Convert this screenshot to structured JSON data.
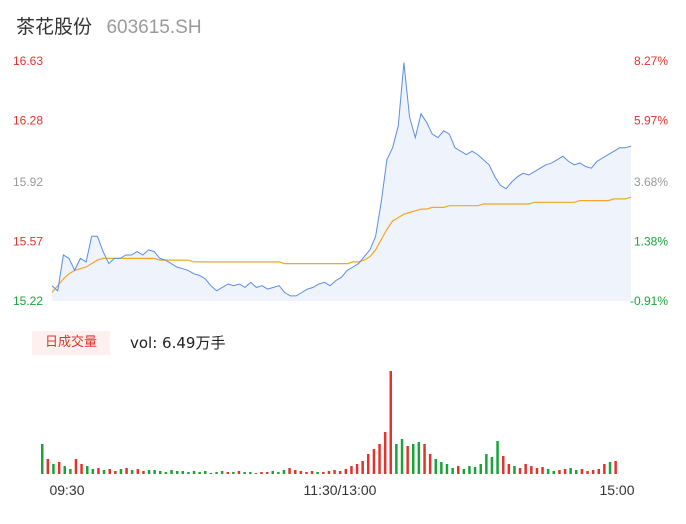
{
  "header": {
    "name": "茶花股份",
    "code": "603615.SH"
  },
  "colors": {
    "price_line": "#5b8ee6",
    "avg_line": "#f5a623",
    "up": "#e5322d",
    "down": "#17a53a",
    "neutral": "#999999",
    "area": "#eef3fc"
  },
  "volume_label": {
    "badge": "日成交量",
    "text": "vol: 6.49万手"
  },
  "chart_data": [
    {
      "type": "line",
      "title": "",
      "y_ticks": [
        "16.63",
        "16.28",
        "15.92",
        "15.57",
        "15.22"
      ],
      "y_tick_values": [
        16.63,
        16.28,
        15.92,
        15.57,
        15.22
      ],
      "pct_ticks": [
        "8.27%",
        "5.97%",
        "3.68%",
        "1.38%",
        "-0.91%"
      ],
      "ylim": [
        15.22,
        16.63
      ],
      "prev_close": 15.36,
      "x_ticks": [
        "09:30",
        "11:30/13:00",
        "15:00"
      ],
      "series": [
        {
          "name": "",
          "values": [
            15.31,
            15.28,
            15.49,
            15.47,
            15.4,
            15.47,
            15.45,
            15.6,
            15.6,
            15.51,
            15.44,
            15.47,
            15.47,
            15.49,
            15.49,
            15.51,
            15.49,
            15.52,
            15.51,
            15.47,
            15.46,
            15.44,
            15.42,
            15.41,
            15.4,
            15.38,
            15.37,
            15.35,
            15.31,
            15.28,
            15.3,
            15.32,
            15.31,
            15.32,
            15.3,
            15.33,
            15.3,
            15.31,
            15.29,
            15.3,
            15.31,
            15.27,
            15.25,
            15.25,
            15.27,
            15.29,
            15.3,
            15.32,
            15.33,
            15.31,
            15.34,
            15.36,
            15.4,
            15.42,
            15.44,
            15.48,
            15.52,
            15.6,
            15.8,
            16.05,
            16.12,
            16.25,
            16.62,
            16.3,
            16.18,
            16.32,
            16.27,
            16.2,
            16.18,
            16.22,
            16.2,
            16.12,
            16.1,
            16.08,
            16.1,
            16.08,
            16.05,
            16.02,
            15.95,
            15.9,
            15.88,
            15.92,
            15.95,
            15.97,
            15.96,
            15.98,
            16.0,
            16.02,
            16.03,
            16.05,
            16.07,
            16.04,
            16.02,
            16.03,
            16.01,
            16.0,
            16.04,
            16.06,
            16.08,
            16.1,
            16.12,
            16.12,
            16.13
          ]
        },
        {
          "name": "",
          "values": [
            15.27,
            15.31,
            15.35,
            15.38,
            15.4,
            15.41,
            15.42,
            15.44,
            15.46,
            15.47,
            15.47,
            15.47,
            15.47,
            15.47,
            15.47,
            15.47,
            15.47,
            15.47,
            15.47,
            15.46,
            15.46,
            15.46,
            15.46,
            15.46,
            15.46,
            15.45,
            15.45,
            15.45,
            15.45,
            15.45,
            15.45,
            15.45,
            15.45,
            15.45,
            15.45,
            15.45,
            15.45,
            15.45,
            15.45,
            15.45,
            15.45,
            15.44,
            15.44,
            15.44,
            15.44,
            15.44,
            15.44,
            15.44,
            15.44,
            15.44,
            15.44,
            15.44,
            15.44,
            15.45,
            15.45,
            15.46,
            15.48,
            15.52,
            15.58,
            15.64,
            15.69,
            15.71,
            15.73,
            15.74,
            15.75,
            15.76,
            15.76,
            15.77,
            15.77,
            15.77,
            15.78,
            15.78,
            15.78,
            15.78,
            15.78,
            15.78,
            15.79,
            15.79,
            15.79,
            15.79,
            15.79,
            15.79,
            15.79,
            15.79,
            15.79,
            15.8,
            15.8,
            15.8,
            15.8,
            15.8,
            15.8,
            15.8,
            15.8,
            15.81,
            15.81,
            15.81,
            15.81,
            15.81,
            15.81,
            15.82,
            15.82,
            15.82,
            15.83
          ]
        }
      ]
    },
    {
      "type": "bar",
      "title": "",
      "x_ticks": [
        "09:30",
        "11:30/13:00",
        "15:00"
      ],
      "series": [
        {
          "name": "",
          "values": [
            0.3,
            0.15,
            0.1,
            0.12,
            0.08,
            0.05,
            0.15,
            0.1,
            0.08,
            0.05,
            0.06,
            0.04,
            0.05,
            0.03,
            0.05,
            0.06,
            0.04,
            0.05,
            0.03,
            0.04,
            0.04,
            0.03,
            0.02,
            0.04,
            0.03,
            0.03,
            0.02,
            0.03,
            0.02,
            0.03,
            0.01,
            0.02,
            0.03,
            0.02,
            0.02,
            0.03,
            0.02,
            0.02,
            0.01,
            0.02,
            0.02,
            0.03,
            0.02,
            0.04,
            0.06,
            0.04,
            0.03,
            0.02,
            0.03,
            0.02,
            0.02,
            0.03,
            0.04,
            0.03,
            0.05,
            0.08,
            0.1,
            0.13,
            0.2,
            0.25,
            0.3,
            0.42,
            1.03,
            0.3,
            0.35,
            0.28,
            0.3,
            0.32,
            0.3,
            0.2,
            0.15,
            0.12,
            0.1,
            0.06,
            0.08,
            0.05,
            0.08,
            0.07,
            0.1,
            0.2,
            0.17,
            0.33,
            0.18,
            0.1,
            0.08,
            0.06,
            0.1,
            0.08,
            0.06,
            0.07,
            0.05,
            0.03,
            0.04,
            0.05,
            0.06,
            0.04,
            0.05,
            0.03,
            0.04,
            0.05,
            0.1,
            0.12,
            0.13
          ],
          "directions": [
            "down",
            "up",
            "down",
            "up",
            "down",
            "down",
            "up",
            "up",
            "down",
            "down",
            "up",
            "down",
            "up",
            "up",
            "down",
            "up",
            "down",
            "up",
            "up",
            "down",
            "down",
            "down",
            "down",
            "down",
            "down",
            "down",
            "down",
            "down",
            "down",
            "down",
            "up",
            "down",
            "down",
            "up",
            "down",
            "up",
            "down",
            "down",
            "down",
            "up",
            "up",
            "down",
            "down",
            "down",
            "up",
            "up",
            "up",
            "up",
            "up",
            "down",
            "up",
            "up",
            "up",
            "up",
            "up",
            "up",
            "up",
            "up",
            "up",
            "up",
            "up",
            "up",
            "up",
            "down",
            "down",
            "up",
            "down",
            "down",
            "up",
            "up",
            "down",
            "down",
            "down",
            "down",
            "up",
            "down",
            "down",
            "down",
            "down",
            "down",
            "down",
            "down",
            "up",
            "up",
            "down",
            "up",
            "up",
            "up",
            "up",
            "up",
            "down",
            "down",
            "up",
            "up",
            "down",
            "down",
            "up",
            "up",
            "up",
            "up",
            "up",
            "down",
            "up"
          ]
        }
      ]
    }
  ]
}
